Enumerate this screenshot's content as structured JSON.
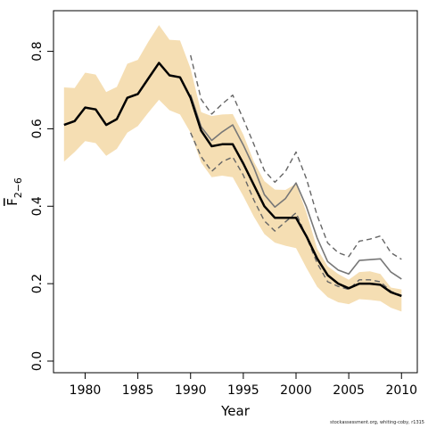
{
  "chart_data": {
    "type": "line",
    "xlabel": "Year",
    "ylabel": {
      "main": "F",
      "subscript": "2−6"
    },
    "xlim": [
      1977,
      2011.5
    ],
    "ylim": [
      -0.03,
      0.905
    ],
    "xticks": [
      1980,
      1985,
      1990,
      1995,
      2000,
      2005,
      2010
    ],
    "yticks": [
      0.0,
      0.2,
      0.4,
      0.6,
      0.8
    ],
    "ytick_labels": [
      "0.0",
      "0.2",
      "0.4",
      "0.6",
      "0.8"
    ],
    "grid": false,
    "x": [
      1978,
      1979,
      1980,
      1981,
      1982,
      1983,
      1984,
      1985,
      1986,
      1987,
      1988,
      1989,
      1990,
      1991,
      1992,
      1993,
      1994,
      1995,
      1996,
      1997,
      1998,
      1999,
      2000,
      2001,
      2002,
      2003,
      2004,
      2005,
      2006,
      2007,
      2008,
      2009,
      2010
    ],
    "series": [
      {
        "style": "band",
        "color": "#f5deb3",
        "upper": [
          0.707,
          0.705,
          0.745,
          0.74,
          0.695,
          0.708,
          0.768,
          0.778,
          0.825,
          0.868,
          0.83,
          0.828,
          0.756,
          0.643,
          0.633,
          0.637,
          0.638,
          0.585,
          0.515,
          0.465,
          0.443,
          0.442,
          0.458,
          0.383,
          0.29,
          0.245,
          0.225,
          0.21,
          0.23,
          0.232,
          0.225,
          0.19,
          0.185
        ],
        "lower": [
          0.515,
          0.54,
          0.568,
          0.563,
          0.53,
          0.548,
          0.59,
          0.607,
          0.642,
          0.675,
          0.648,
          0.637,
          0.59,
          0.513,
          0.475,
          0.479,
          0.475,
          0.426,
          0.373,
          0.328,
          0.306,
          0.298,
          0.292,
          0.24,
          0.192,
          0.165,
          0.152,
          0.147,
          0.16,
          0.158,
          0.155,
          0.138,
          0.128
        ]
      },
      {
        "style": "dashed",
        "color": "#666666",
        "x": [
          1990,
          1991,
          1992,
          1993,
          1994,
          1995,
          1996,
          1997,
          1998,
          1999,
          2000,
          2001,
          2002,
          2003,
          2004,
          2005,
          2006,
          2007,
          2008,
          2009,
          2010
        ],
        "values": [
          0.79,
          0.676,
          0.638,
          0.664,
          0.687,
          0.625,
          0.56,
          0.492,
          0.462,
          0.49,
          0.54,
          0.47,
          0.376,
          0.305,
          0.28,
          0.27,
          0.31,
          0.315,
          0.323,
          0.28,
          0.263
        ]
      },
      {
        "style": "solid",
        "color": "#777777",
        "x": [
          1990,
          1991,
          1992,
          1993,
          1994,
          1995,
          1996,
          1997,
          1998,
          1999,
          2000,
          2001,
          2002,
          2003,
          2004,
          2005,
          2006,
          2007,
          2008,
          2009,
          2010
        ],
        "values": [
          0.688,
          0.605,
          0.57,
          0.592,
          0.61,
          0.558,
          0.5,
          0.43,
          0.398,
          0.42,
          0.46,
          0.398,
          0.318,
          0.257,
          0.235,
          0.225,
          0.26,
          0.262,
          0.264,
          0.23,
          0.212
        ]
      },
      {
        "style": "dashed",
        "color": "#666666",
        "x": [
          1990,
          1991,
          1992,
          1993,
          1994,
          1995,
          1996,
          1997,
          1998,
          1999,
          2000,
          2001,
          2002,
          2003,
          2004,
          2005,
          2006,
          2007,
          2008,
          2009,
          2010
        ],
        "values": [
          0.59,
          0.528,
          0.49,
          0.515,
          0.527,
          0.48,
          0.416,
          0.362,
          0.336,
          0.36,
          0.383,
          0.32,
          0.253,
          0.205,
          0.193,
          0.185,
          0.21,
          0.21,
          0.205,
          0.18,
          0.17
        ]
      },
      {
        "style": "bold",
        "color": "#000000",
        "x": [
          1978,
          1979,
          1980,
          1981,
          1982,
          1983,
          1984,
          1985,
          1986,
          1987,
          1988,
          1989,
          1990,
          1991,
          1992,
          1993,
          1994,
          1995,
          1996,
          1997,
          1998,
          1999,
          2000,
          2001,
          2002,
          2003,
          2004,
          2005,
          2006,
          2007,
          2008,
          2009,
          2010
        ],
        "values": [
          0.61,
          0.62,
          0.655,
          0.65,
          0.61,
          0.625,
          0.68,
          0.69,
          0.73,
          0.77,
          0.738,
          0.733,
          0.68,
          0.595,
          0.555,
          0.56,
          0.56,
          0.51,
          0.455,
          0.4,
          0.37,
          0.37,
          0.37,
          0.322,
          0.265,
          0.222,
          0.2,
          0.188,
          0.2,
          0.2,
          0.197,
          0.178,
          0.168
        ]
      }
    ]
  },
  "credit": "stockassessment.org, whiting-coby, r1315"
}
